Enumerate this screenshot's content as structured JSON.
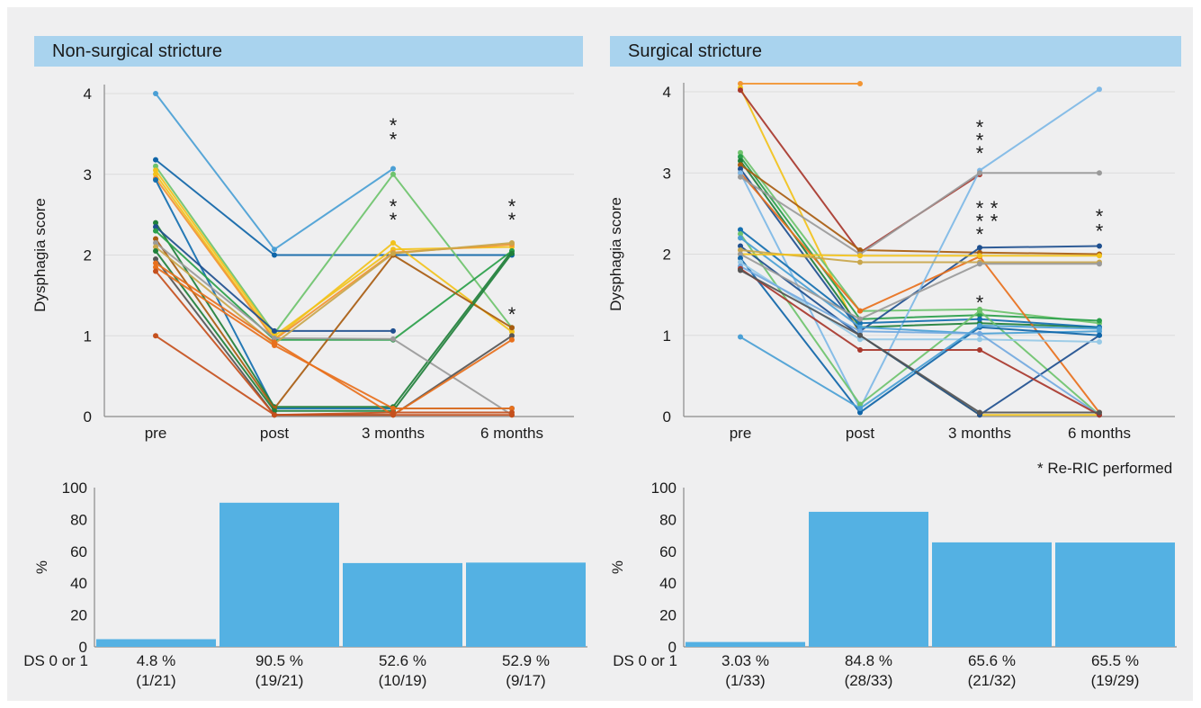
{
  "note": "* Re-RIC performed",
  "colors": {
    "bar": "#54b1e3",
    "header_bg": "#a9d3ee",
    "panel_bg": "#efeff0",
    "palette": [
      "#4a9fd5",
      "#0f65a8",
      "#6ec36c",
      "#f2c21b",
      "#f29533",
      "#c5501d",
      "#9a9a9a",
      "#1f7f3a",
      "#a85c10",
      "#73a9e0",
      "#1e4f8f",
      "#a8372c",
      "#e8701c",
      "#2a9f4a",
      "#c9a64b",
      "#7eb8e6",
      "#146fb0",
      "#96c9e6"
    ]
  },
  "chart_data": [
    {
      "type": "line",
      "panel": "Non-surgical stricture",
      "title": "Non-surgical stricture",
      "categories": [
        "pre",
        "post",
        "3 months",
        "6 months"
      ],
      "ylabel": "Dysphagia score",
      "ylim": [
        0,
        4
      ],
      "yticks": [
        0,
        1,
        2,
        3,
        4
      ],
      "grid": true,
      "series": [
        {
          "values": [
            4.0,
            2.07,
            3.07,
            null
          ],
          "color": "#4a9fd5"
        },
        {
          "values": [
            3.18,
            2.0,
            2.0,
            2.0
          ],
          "color": "#0f65a8"
        },
        {
          "values": [
            3.1,
            1.03,
            3.0,
            1.1
          ],
          "color": "#6ec36c"
        },
        {
          "values": [
            3.05,
            1.0,
            2.07,
            2.1
          ],
          "color": "#f2c21b"
        },
        {
          "values": [
            3.0,
            0.96,
            2.15,
            1.05
          ],
          "color": "#f2c21b"
        },
        {
          "values": [
            2.95,
            0.95,
            2.03,
            2.13
          ],
          "color": "#f29533"
        },
        {
          "values": [
            2.93,
            0.1,
            0.1,
            0.1
          ],
          "color": "#146fb0"
        },
        {
          "values": [
            2.4,
            0.12,
            0.12,
            2.05
          ],
          "color": "#1f7f3a"
        },
        {
          "values": [
            2.35,
            1.06,
            1.06,
            null
          ],
          "color": "#1e4f8f"
        },
        {
          "values": [
            2.3,
            0.95,
            0.95,
            2.05
          ],
          "color": "#2a9f4a"
        },
        {
          "values": [
            2.2,
            0.1,
            2.0,
            1.1
          ],
          "color": "#a85c10"
        },
        {
          "values": [
            2.15,
            0.97,
            0.96,
            0.02
          ],
          "color": "#9a9a9a"
        },
        {
          "values": [
            2.1,
            0.9,
            2.02,
            2.15
          ],
          "color": "#c9a64b"
        },
        {
          "values": [
            2.05,
            0.07,
            0.07,
            2.02
          ],
          "color": "#1f7f3a"
        },
        {
          "values": [
            1.95,
            0.02,
            0.02,
            1.0
          ],
          "color": "#555555"
        },
        {
          "values": [
            1.9,
            0.92,
            0.02,
            0.95
          ],
          "color": "#e8701c"
        },
        {
          "values": [
            1.85,
            0.88,
            0.1,
            0.1
          ],
          "color": "#e8701c"
        },
        {
          "values": [
            1.8,
            0.02,
            0.05,
            0.05
          ],
          "color": "#c5501d"
        },
        {
          "values": [
            1.0,
            0.02,
            0.02,
            0.02
          ],
          "color": "#c5501d"
        }
      ],
      "annotations": [
        {
          "text": "*",
          "x": "3 months",
          "y": 3.62
        },
        {
          "text": "*",
          "x": "3 months",
          "y": 3.45
        },
        {
          "text": "*",
          "x": "3 months",
          "y": 2.62
        },
        {
          "text": "*",
          "x": "3 months",
          "y": 2.45
        },
        {
          "text": "*",
          "x": "6 months",
          "y": 2.62
        },
        {
          "text": "*",
          "x": "6 months",
          "y": 2.45
        },
        {
          "text": "*",
          "x": "6 months",
          "y": 1.28
        }
      ]
    },
    {
      "type": "bar",
      "panel": "Non-surgical stricture",
      "categories": [
        "4.8 %",
        "90.5 %",
        "52.6 %",
        "52.9 %"
      ],
      "subcategories": [
        "(1/21)",
        "(19/21)",
        "(10/19)",
        "(9/17)"
      ],
      "category_prefix": "DS 0 or 1",
      "values": [
        4.8,
        90.5,
        52.6,
        52.9
      ],
      "ylabel": "%",
      "ylim": [
        0,
        100
      ],
      "yticks": [
        0,
        20,
        40,
        60,
        80,
        100
      ]
    },
    {
      "type": "line",
      "panel": "Surgical stricture",
      "title": "Surgical stricture",
      "categories": [
        "pre",
        "post",
        "3 months",
        "6 months"
      ],
      "ylabel": "Dysphagia score",
      "ylim": [
        0,
        4
      ],
      "yticks": [
        0,
        1,
        2,
        3,
        4
      ],
      "grid": true,
      "series": [
        {
          "values": [
            4.1,
            4.1,
            null,
            null
          ],
          "color": "#f29533"
        },
        {
          "values": [
            4.05,
            1.0,
            0.02,
            0.02
          ],
          "color": "#f2c21b"
        },
        {
          "values": [
            4.02,
            2.02,
            2.98,
            null
          ],
          "color": "#a8372c"
        },
        {
          "values": [
            3.25,
            1.3,
            1.32,
            1.15
          ],
          "color": "#6ec36c"
        },
        {
          "values": [
            3.2,
            1.2,
            1.25,
            1.18
          ],
          "color": "#2a9f4a"
        },
        {
          "values": [
            3.15,
            1.1,
            1.15,
            1.1
          ],
          "color": "#1f7f3a"
        },
        {
          "values": [
            3.1,
            2.05,
            2.02,
            2.0
          ],
          "color": "#a85c10"
        },
        {
          "values": [
            3.05,
            1.05,
            2.08,
            2.1
          ],
          "color": "#1e4f8f"
        },
        {
          "values": [
            3.0,
            1.3,
            1.97,
            0.05
          ],
          "color": "#e8701c"
        },
        {
          "values": [
            3.0,
            0.1,
            3.03,
            4.03
          ],
          "color": "#7eb8e6"
        },
        {
          "values": [
            2.95,
            2.0,
            3.0,
            3.0
          ],
          "color": "#9a9a9a"
        },
        {
          "values": [
            2.3,
            1.15,
            1.2,
            1.1
          ],
          "color": "#146fb0"
        },
        {
          "values": [
            2.25,
            0.15,
            1.3,
            0.02
          ],
          "color": "#6ec36c"
        },
        {
          "values": [
            2.2,
            1.1,
            1.02,
            1.05
          ],
          "color": "#4a9fd5"
        },
        {
          "values": [
            2.1,
            1.0,
            0.02,
            1.0
          ],
          "color": "#1e4f8f"
        },
        {
          "values": [
            2.05,
            1.9,
            1.9,
            1.9
          ],
          "color": "#c9a64b"
        },
        {
          "values": [
            2.0,
            1.98,
            1.98,
            1.98
          ],
          "color": "#f2c21b"
        },
        {
          "values": [
            2.0,
            1.2,
            1.88,
            1.88
          ],
          "color": "#9a9a9a"
        },
        {
          "values": [
            1.95,
            0.05,
            1.1,
            1.0
          ],
          "color": "#0f65a8"
        },
        {
          "values": [
            1.9,
            0.95,
            0.95,
            0.92
          ],
          "color": "#96c9e6"
        },
        {
          "values": [
            1.85,
            1.05,
            1.02,
            0.02
          ],
          "color": "#73a9e0"
        },
        {
          "values": [
            1.82,
            0.82,
            0.82,
            0.02
          ],
          "color": "#a8372c"
        },
        {
          "values": [
            1.8,
            1.0,
            0.05,
            0.05
          ],
          "color": "#555555"
        },
        {
          "values": [
            0.98,
            0.1,
            1.12,
            1.08
          ],
          "color": "#4a9fd5"
        }
      ],
      "annotations": [
        {
          "text": "*",
          "x": "3 months",
          "y": 3.58
        },
        {
          "text": "*",
          "x": "3 months",
          "y": 3.42
        },
        {
          "text": "*",
          "x": "3 months",
          "y": 3.26
        },
        {
          "text": "*",
          "x": "3 months",
          "y": 2.58
        },
        {
          "text": "*",
          "x": "3 months",
          "y": 2.42
        },
        {
          "text": "*",
          "x": "3 months",
          "y": 2.26
        },
        {
          "text": "*",
          "x": "3 months",
          "y": 2.58,
          "dx": 16
        },
        {
          "text": "*",
          "x": "3 months",
          "y": 2.42,
          "dx": 16
        },
        {
          "text": "*",
          "x": "6 months",
          "y": 2.48
        },
        {
          "text": "*",
          "x": "6 months",
          "y": 2.3
        },
        {
          "text": "*",
          "x": "3 months",
          "y": 1.42
        }
      ]
    },
    {
      "type": "bar",
      "panel": "Surgical stricture",
      "categories": [
        "3.03 %",
        "84.8 %",
        "65.6 %",
        "65.5 %"
      ],
      "subcategories": [
        "(1/33)",
        "(28/33)",
        "(21/32)",
        "(19/29)"
      ],
      "category_prefix": "DS 0 or 1",
      "values": [
        3.03,
        84.8,
        65.6,
        65.5
      ],
      "ylabel": "%",
      "ylim": [
        0,
        100
      ],
      "yticks": [
        0,
        20,
        40,
        60,
        80,
        100
      ]
    }
  ]
}
